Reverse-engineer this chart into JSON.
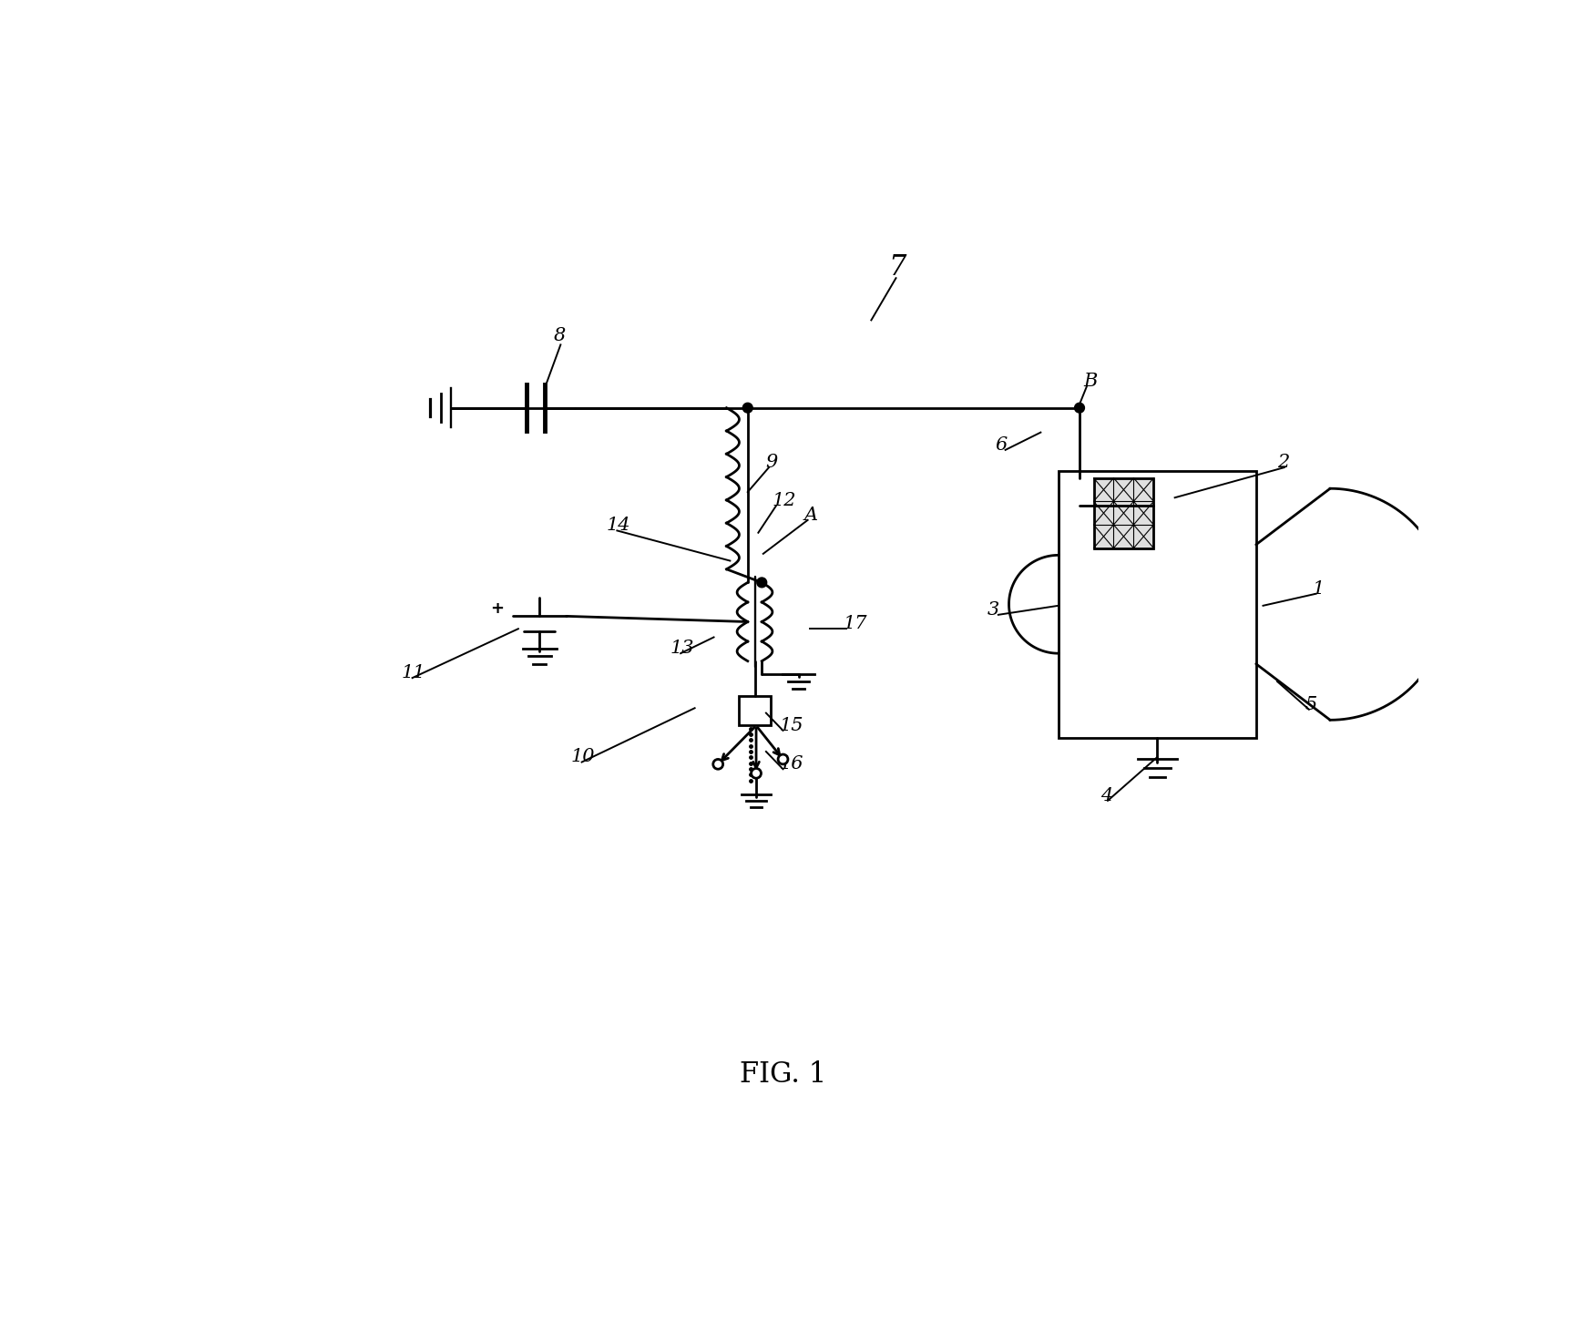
{
  "bg_color": "#ffffff",
  "line_color": "#000000",
  "fig_width": 17.3,
  "fig_height": 14.72,
  "caption": "FIG. 1",
  "labels": {
    "7": [
      9.8,
      13.0,
      22
    ],
    "8": [
      5.05,
      12.1,
      15
    ],
    "9": [
      8.05,
      10.3,
      15
    ],
    "B": [
      12.55,
      11.45,
      15
    ],
    "6": [
      11.3,
      10.55,
      15
    ],
    "2": [
      15.3,
      10.3,
      15
    ],
    "1": [
      15.8,
      8.5,
      15
    ],
    "3": [
      11.2,
      8.2,
      15
    ],
    "4": [
      12.8,
      5.55,
      15
    ],
    "5": [
      15.7,
      6.85,
      15
    ],
    "12": [
      8.15,
      9.75,
      15
    ],
    "A": [
      8.6,
      9.55,
      15
    ],
    "14": [
      5.8,
      9.4,
      15
    ],
    "11": [
      2.9,
      7.3,
      15
    ],
    "13": [
      6.7,
      7.65,
      15
    ],
    "15": [
      8.25,
      6.55,
      15
    ],
    "16": [
      8.25,
      6.0,
      15
    ],
    "17": [
      9.15,
      8.0,
      15
    ],
    "10": [
      5.3,
      6.1,
      15
    ]
  }
}
